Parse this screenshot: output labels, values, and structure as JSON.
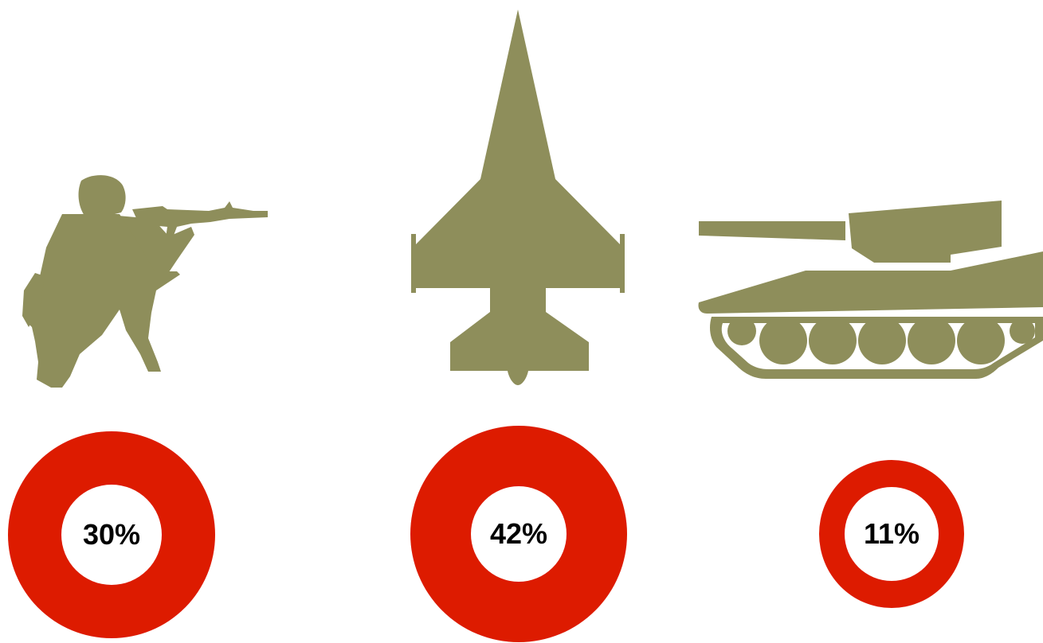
{
  "colors": {
    "silhouette": "#8e8e5b",
    "ring": "#dd1b00",
    "ring_center": "#ffffff",
    "label": "#000000"
  },
  "items": [
    {
      "icon": "soldier-icon",
      "percent": "30%",
      "value": 30
    },
    {
      "icon": "fighter-jet-icon",
      "percent": "42%",
      "value": 42
    },
    {
      "icon": "tank-icon",
      "percent": "11%",
      "value": 11
    }
  ]
}
